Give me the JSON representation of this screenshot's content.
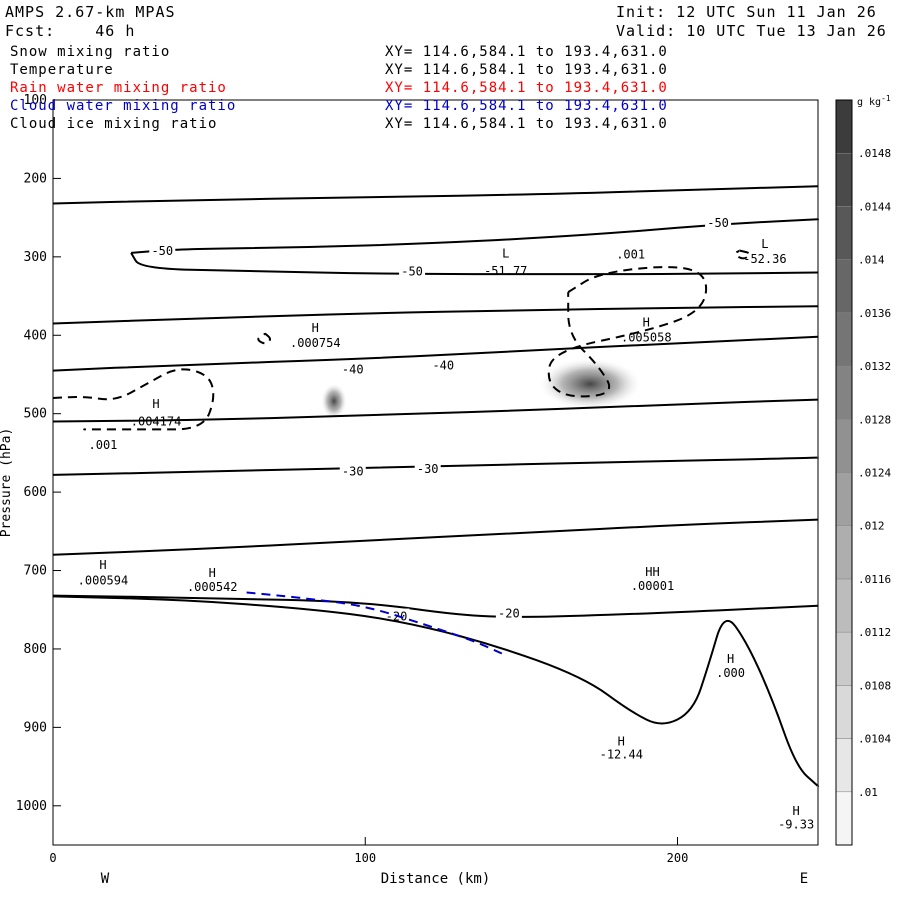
{
  "header": {
    "model": "AMPS 2.67-km MPAS",
    "forecast": "Fcst:    46 h",
    "init": "Init: 12 UTC Sun 11 Jan 26",
    "valid": "Valid: 10 UTC Tue 13 Jan 26",
    "fields": [
      {
        "name": "Snow mixing ratio",
        "xy": "XY= 114.6,584.1 to 193.4,631.0",
        "color": "#000000"
      },
      {
        "name": "Temperature",
        "xy": "XY= 114.6,584.1 to 193.4,631.0",
        "color": "#000000"
      },
      {
        "name": "Rain water mixing ratio",
        "xy": "XY= 114.6,584.1 to 193.4,631.0",
        "color": "#ff0000"
      },
      {
        "name": "Cloud water mixing ratio",
        "xy": "XY= 114.6,584.1 to 193.4,631.0",
        "color": "#0000cc"
      },
      {
        "name": "Cloud ice mixing ratio",
        "xy": "XY= 114.6,584.1 to 193.4,631.0",
        "color": "#000000"
      }
    ]
  },
  "chart_data": {
    "type": "cross-section contour",
    "xlabel": "Distance (km)",
    "ylabel": "Pressure (hPa)",
    "xlim": [
      0,
      245
    ],
    "ylim": [
      1050,
      100
    ],
    "x_ticks": [
      0,
      100,
      200
    ],
    "y_ticks": [
      100,
      200,
      300,
      400,
      500,
      600,
      700,
      800,
      900,
      1000
    ],
    "endpoint_labels": {
      "left": "W",
      "right": "E"
    },
    "colorbar": {
      "unit": "g kg",
      "unit_exponent": "-1",
      "levels": [
        ".01",
        ".0104",
        ".0108",
        ".0112",
        ".0116",
        ".012",
        ".0124",
        ".0128",
        ".0132",
        ".0136",
        ".014",
        ".0144",
        ".0148"
      ],
      "shade_light": "#f4f4f4",
      "shade_dark": "#3c3c3c"
    },
    "temperature_contours": [
      {
        "points": [
          [
            0,
            232
          ],
          [
            40,
            228
          ],
          [
            100,
            224
          ],
          [
            160,
            220
          ],
          [
            200,
            215
          ],
          [
            245,
            210
          ]
        ]
      },
      {
        "points": [
          [
            0,
            385
          ],
          [
            50,
            378
          ],
          [
            100,
            372
          ],
          [
            150,
            368
          ],
          [
            200,
            365
          ],
          [
            245,
            363
          ]
        ]
      },
      {
        "points": [
          [
            0,
            445
          ],
          [
            40,
            438
          ],
          [
            100,
            430
          ],
          [
            150,
            420
          ],
          [
            200,
            410
          ],
          [
            245,
            402
          ]
        ],
        "labels": [
          {
            "x": 96,
            "p": 445,
            "text": "-40"
          },
          {
            "x": 125,
            "p": 440,
            "text": "-40"
          }
        ]
      },
      {
        "points": [
          [
            0,
            510
          ],
          [
            50,
            508
          ],
          [
            100,
            502
          ],
          [
            150,
            496
          ],
          [
            200,
            488
          ],
          [
            245,
            482
          ]
        ]
      },
      {
        "points": [
          [
            0,
            578
          ],
          [
            60,
            573
          ],
          [
            120,
            567
          ],
          [
            180,
            562
          ],
          [
            245,
            556
          ]
        ],
        "labels": [
          {
            "x": 96,
            "p": 575,
            "text": "-30"
          },
          {
            "x": 120,
            "p": 572,
            "text": "-30"
          }
        ]
      },
      {
        "points": [
          [
            0,
            680
          ],
          [
            50,
            672
          ],
          [
            100,
            662
          ],
          [
            150,
            652
          ],
          [
            200,
            642
          ],
          [
            245,
            635
          ]
        ]
      }
    ],
    "minus50_contour": {
      "points": [
        [
          25,
          295
        ],
        [
          40,
          290
        ],
        [
          80,
          288
        ],
        [
          120,
          283
        ],
        [
          155,
          276
        ],
        [
          185,
          268
        ],
        [
          215,
          258
        ],
        [
          245,
          252
        ]
      ],
      "labels": [
        {
          "x": 35,
          "p": 294,
          "text": "-50"
        },
        {
          "x": 115,
          "p": 320,
          "text": "-50"
        },
        {
          "x": 213,
          "p": 258,
          "text": "-50"
        }
      ]
    },
    "minus50_lower": {
      "points": [
        [
          25,
          295
        ],
        [
          28,
          315
        ],
        [
          60,
          318
        ],
        [
          110,
          322
        ],
        [
          160,
          322
        ],
        [
          200,
          322
        ],
        [
          245,
          320
        ]
      ]
    },
    "minus20_contour": {
      "points": [
        [
          0,
          732
        ],
        [
          50,
          735
        ],
        [
          100,
          740
        ],
        [
          130,
          757
        ],
        [
          150,
          760
        ],
        [
          190,
          755
        ],
        [
          245,
          745
        ]
      ],
      "labels": [
        {
          "x": 110,
          "p": 760,
          "text": "-20"
        },
        {
          "x": 146,
          "p": 756,
          "text": "-20"
        }
      ]
    },
    "terrain": {
      "points": [
        [
          0,
          733
        ],
        [
          40,
          737
        ],
        [
          80,
          748
        ],
        [
          110,
          763
        ],
        [
          140,
          793
        ],
        [
          170,
          836
        ],
        [
          185,
          880
        ],
        [
          195,
          900
        ],
        [
          205,
          880
        ],
        [
          210,
          820
        ],
        [
          215,
          752
        ],
        [
          222,
          790
        ],
        [
          230,
          860
        ],
        [
          238,
          950
        ],
        [
          245,
          975
        ]
      ]
    },
    "dashed_contours": [
      {
        "points": [
          [
            165,
            345
          ],
          [
            175,
            320
          ],
          [
            200,
            310
          ],
          [
            210,
            325
          ],
          [
            208,
            370
          ],
          [
            190,
            395
          ],
          [
            160,
            420
          ],
          [
            158,
            460
          ],
          [
            165,
            480
          ],
          [
            180,
            475
          ],
          [
            175,
            440
          ],
          [
            165,
            400
          ],
          [
            165,
            345
          ]
        ]
      },
      {
        "points": [
          [
            0,
            480
          ],
          [
            10,
            478
          ],
          [
            20,
            484
          ],
          [
            30,
            462
          ],
          [
            40,
            440
          ],
          [
            50,
            450
          ],
          [
            52,
            480
          ],
          [
            48,
            520
          ],
          [
            30,
            520
          ],
          [
            10,
            520
          ]
        ]
      },
      {
        "points": [
          [
            68,
            398
          ],
          [
            70,
            405
          ],
          [
            68,
            412
          ],
          [
            65,
            405
          ],
          [
            68,
            398
          ]
        ]
      },
      {
        "points": [
          [
            220,
            292
          ],
          [
            224,
            296
          ],
          [
            221,
            304
          ],
          [
            218,
            296
          ],
          [
            220,
            292
          ]
        ]
      }
    ],
    "cloud_water_contour": {
      "points": [
        [
          62,
          728
        ],
        [
          80,
          735
        ],
        [
          100,
          745
        ],
        [
          120,
          770
        ],
        [
          135,
          790
        ],
        [
          145,
          808
        ]
      ]
    },
    "shaded_features": [
      {
        "x": 172,
        "p": 462,
        "rx": 16,
        "rp": 32
      },
      {
        "x": 90,
        "p": 484,
        "rx": 4,
        "rp": 22
      }
    ],
    "annotations": [
      {
        "x": 145,
        "p": 301,
        "text": "L"
      },
      {
        "x": 145,
        "p": 323,
        "text": "-51.77"
      },
      {
        "x": 228,
        "p": 289,
        "text": "L"
      },
      {
        "x": 228,
        "p": 308,
        "text": "-52.36"
      },
      {
        "x": 84,
        "p": 396,
        "text": "H"
      },
      {
        "x": 84,
        "p": 415,
        "text": ".000754"
      },
      {
        "x": 190,
        "p": 389,
        "text": "H"
      },
      {
        "x": 190,
        "p": 408,
        "text": ".005058"
      },
      {
        "x": 33,
        "p": 493,
        "text": "H"
      },
      {
        "x": 33,
        "p": 515,
        "text": ".004174"
      },
      {
        "x": 16,
        "p": 545,
        "text": ".001"
      },
      {
        "x": 185,
        "p": 302,
        "text": ".001"
      },
      {
        "x": 16,
        "p": 698,
        "text": "H"
      },
      {
        "x": 16,
        "p": 718,
        "text": ".000594"
      },
      {
        "x": 51,
        "p": 708,
        "text": "H"
      },
      {
        "x": 51,
        "p": 726,
        "text": ".000542"
      },
      {
        "x": 192,
        "p": 707,
        "text": "HH"
      },
      {
        "x": 192,
        "p": 725,
        "text": ".00001"
      },
      {
        "x": 217,
        "p": 818,
        "text": "H"
      },
      {
        "x": 217,
        "p": 836,
        "text": ".000"
      },
      {
        "x": 182,
        "p": 923,
        "text": "H"
      },
      {
        "x": 182,
        "p": 940,
        "text": "-12.44"
      },
      {
        "x": 238,
        "p": 1012,
        "text": "H"
      },
      {
        "x": 238,
        "p": 1029,
        "text": "-9.33"
      }
    ],
    "grid": false
  }
}
